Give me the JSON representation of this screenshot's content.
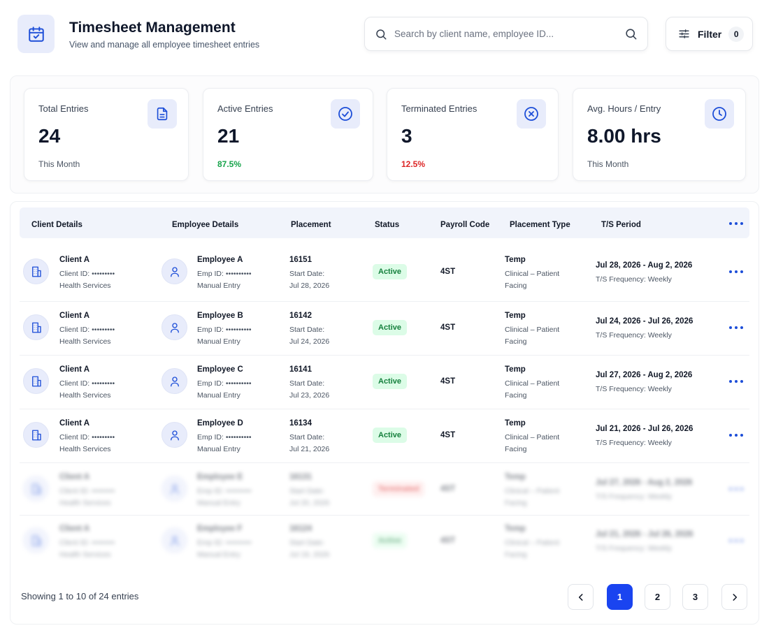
{
  "header": {
    "title": "Timesheet Management",
    "subtitle": "View and manage all employee timesheet entries",
    "icon": "calendar-icon"
  },
  "search": {
    "placeholder": "Search by client name, employee ID..."
  },
  "filter": {
    "label": "Filter",
    "count": "0"
  },
  "stats": [
    {
      "label": "Total Entries",
      "value": "24",
      "note": "This Month",
      "icon": "document-icon"
    },
    {
      "label": "Active Entries",
      "value": "21",
      "note": "87.5%",
      "icon": "check-circle-icon"
    },
    {
      "label": "Terminated Entries",
      "value": "3",
      "note": "12.5%",
      "icon": "x-circle-icon"
    },
    {
      "label": "Avg. Hours / Entry",
      "value": "8.00 hrs",
      "note": "This Month",
      "icon": "clock-icon"
    }
  ],
  "table": {
    "columns": [
      "Client Details",
      "Employee Details",
      "Placement",
      "Status",
      "Payroll Code",
      "Placement Type",
      "T/S Period"
    ],
    "rows": [
      {
        "client": "Client A",
        "client_id": "Client ID: •••••••••",
        "client_type": "Health Services",
        "employee": "Employee A",
        "emp_id": "Emp ID: ••••••••••",
        "entry": "Manual Entry",
        "placement": "16151",
        "start_label": "Start Date:",
        "start_date": "Jul 28, 2026",
        "status": "Active",
        "payroll": "4ST",
        "ptype": "Temp",
        "ptype_detail1": "Clinical – Patient",
        "ptype_detail2": "Facing",
        "period": "Jul 28, 2026 - Aug 2, 2026",
        "frequency": "T/S Frequency: Weekly"
      },
      {
        "client": "Client A",
        "client_id": "Client ID: •••••••••",
        "client_type": "Health Services",
        "employee": "Employee B",
        "emp_id": "Emp ID: ••••••••••",
        "entry": "Manual Entry",
        "placement": "16142",
        "start_label": "Start Date:",
        "start_date": "Jul 24, 2026",
        "status": "Active",
        "payroll": "4ST",
        "ptype": "Temp",
        "ptype_detail1": "Clinical – Patient",
        "ptype_detail2": "Facing",
        "period": "Jul 24, 2026 - Jul 26, 2026",
        "frequency": "T/S Frequency: Weekly"
      },
      {
        "client": "Client A",
        "client_id": "Client ID: •••••••••",
        "client_type": "Health Services",
        "employee": "Employee C",
        "emp_id": "Emp ID: ••••••••••",
        "entry": "Manual Entry",
        "placement": "16141",
        "start_label": "Start Date:",
        "start_date": "Jul 23, 2026",
        "status": "Active",
        "payroll": "4ST",
        "ptype": "Temp",
        "ptype_detail1": "Clinical – Patient",
        "ptype_detail2": "Facing",
        "period": "Jul 27, 2026 - Aug 2, 2026",
        "frequency": "T/S Frequency: Weekly"
      },
      {
        "client": "Client A",
        "client_id": "Client ID: •••••••••",
        "client_type": "Health Services",
        "employee": "Employee D",
        "emp_id": "Emp ID: ••••••••••",
        "entry": "Manual Entry",
        "placement": "16134",
        "start_label": "Start Date:",
        "start_date": "Jul 21, 2026",
        "status": "Active",
        "payroll": "4ST",
        "ptype": "Temp",
        "ptype_detail1": "Clinical – Patient",
        "ptype_detail2": "Facing",
        "period": "Jul 21, 2026 - Jul 26, 2026",
        "frequency": "T/S Frequency: Weekly"
      },
      {
        "client": "Client A",
        "client_id": "Client ID: •••••••••",
        "client_type": "Health Services",
        "employee": "Employee E",
        "emp_id": "Emp ID: ••••••••••",
        "entry": "Manual Entry",
        "placement": "16131",
        "start_label": "Start Date:",
        "start_date": "Jul 20, 2026",
        "status": "Terminated",
        "payroll": "4ST",
        "ptype": "Temp",
        "ptype_detail1": "Clinical – Patient",
        "ptype_detail2": "Facing",
        "period": "Jul 27, 2026 - Aug 2, 2026",
        "frequency": "T/S Frequency: Weekly"
      },
      {
        "client": "Client A",
        "client_id": "Client ID: •••••••••",
        "client_type": "Health Services",
        "employee": "Employee F",
        "emp_id": "Emp ID: ••••••••••",
        "entry": "Manual Entry",
        "placement": "16124",
        "start_label": "Start Date:",
        "start_date": "Jul 19, 2026",
        "status": "Active",
        "payroll": "4ST",
        "ptype": "Temp",
        "ptype_detail1": "Clinical – Patient",
        "ptype_detail2": "Facing",
        "period": "Jul 21, 2026 - Jul 26, 2026",
        "frequency": "T/S Frequency: Weekly"
      }
    ]
  },
  "footer": {
    "showing": "Showing 1 to 10 of 24 entries",
    "pages": [
      "1",
      "2",
      "3"
    ],
    "current_page": "1"
  },
  "colors": {
    "accent": "#1a44f0",
    "icon_bg": "#e8ecfb",
    "active_bg": "#dcfce7",
    "active_text": "#15803d",
    "positive": "#16a34a",
    "negative": "#dc2626"
  }
}
